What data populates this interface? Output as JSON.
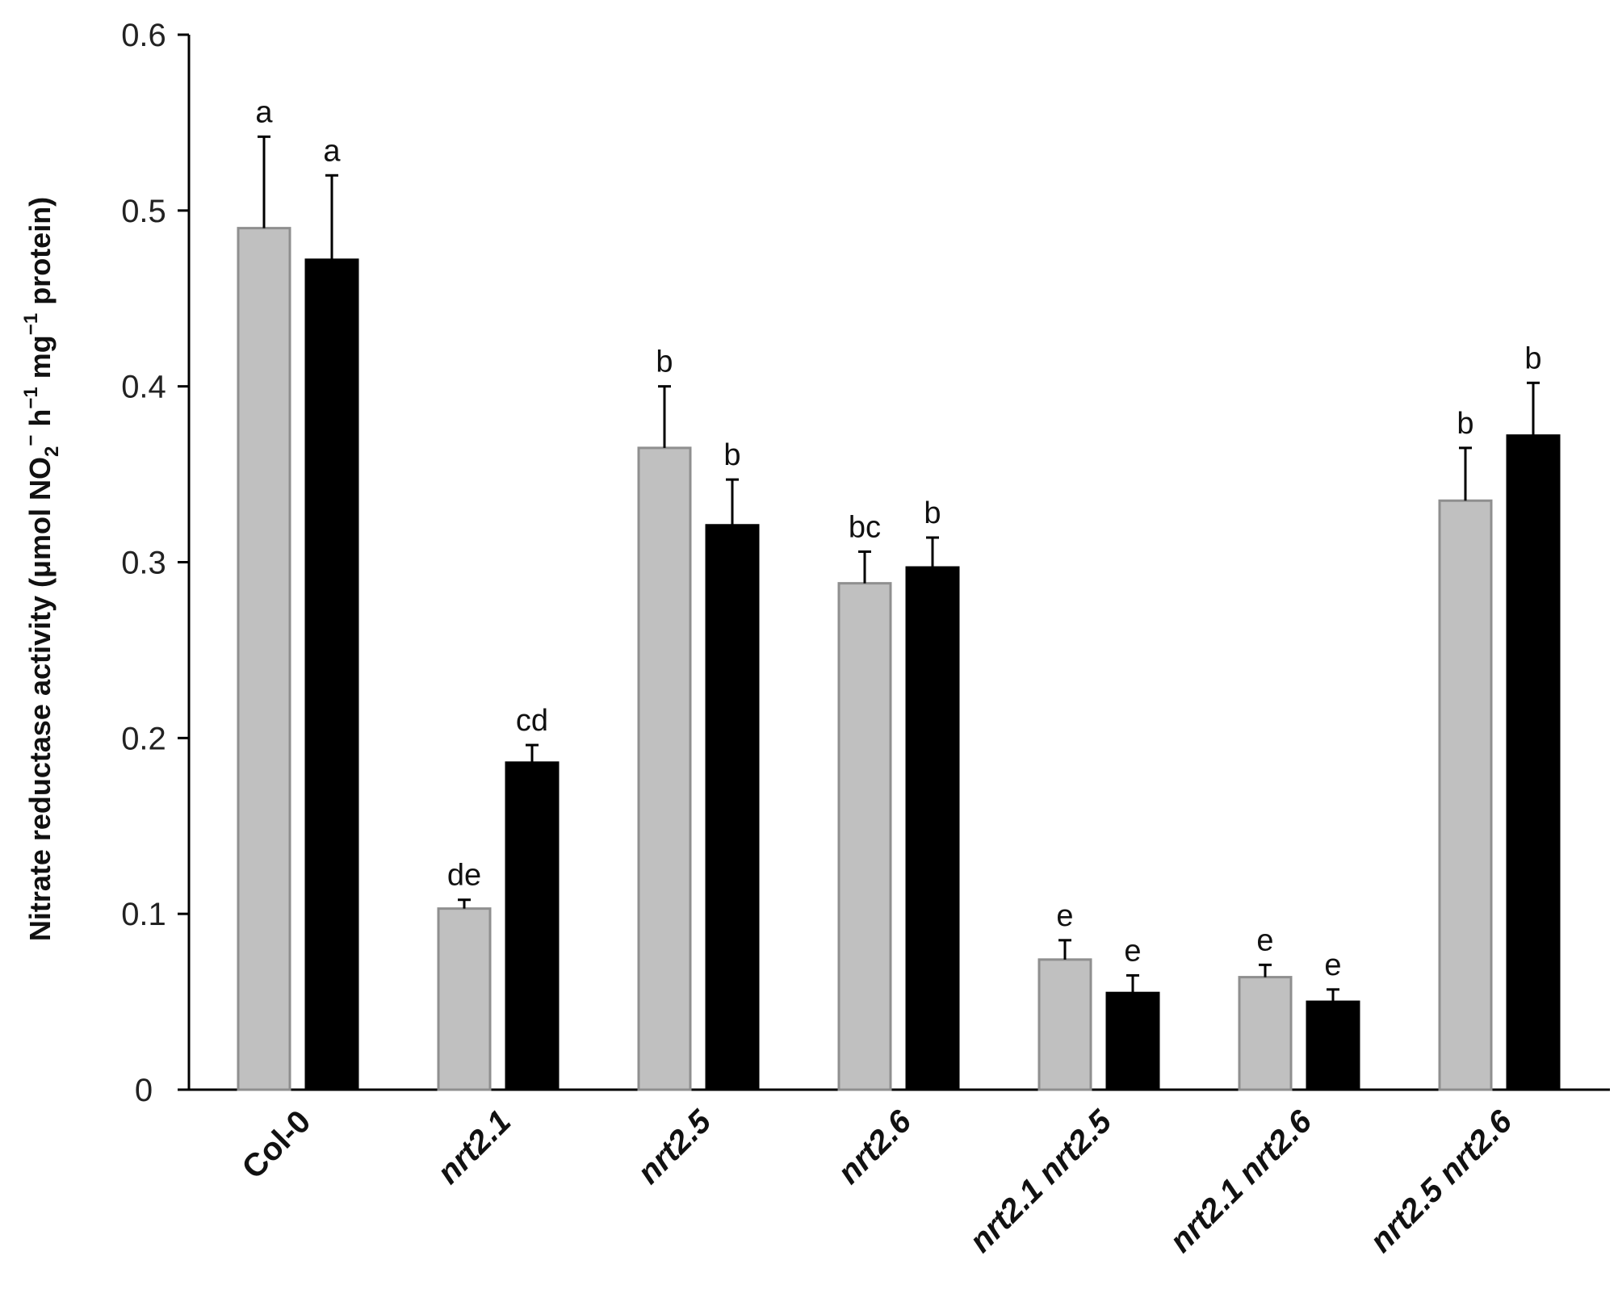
{
  "chart_data": {
    "type": "bar",
    "xlabel": "",
    "ylabel": "",
    "ylabel_parts": {
      "text_a": "Nitrate reductase activity (μmol NO",
      "sub_2": "2",
      "sup_minus": "−",
      "text_b": " h",
      "sup_neg1": "−1",
      "text_c": " mg",
      "sup_neg1_b": "−1",
      "text_d": " protein)"
    },
    "ylim": [
      0,
      0.6
    ],
    "yticks": [
      {
        "value": 0,
        "label": "0"
      },
      {
        "value": 0.1,
        "label": "0.1"
      },
      {
        "value": 0.2,
        "label": "0.2"
      },
      {
        "value": 0.3,
        "label": "0.3"
      },
      {
        "value": 0.4,
        "label": "0.4"
      },
      {
        "value": 0.5,
        "label": "0.5"
      },
      {
        "value": 0.6,
        "label": "0.6"
      }
    ],
    "grid": false,
    "legend": "none",
    "categories": [
      "Col-0",
      "nrt2.1",
      "nrt2.5",
      "nrt2.6",
      "nrt2.1 nrt2.5",
      "nrt2.1 nrt2.6",
      "nrt2.5 nrt2.6"
    ],
    "category_italic": [
      false,
      true,
      true,
      true,
      true,
      true,
      true
    ],
    "series": [
      {
        "color": "#c0c0c0",
        "stroke": "#8f8f8f",
        "values": [
          0.49,
          0.103,
          0.365,
          0.288,
          0.074,
          0.064,
          0.335
        ],
        "errors": [
          0.052,
          0.005,
          0.035,
          0.018,
          0.011,
          0.007,
          0.03
        ],
        "letters": [
          "a",
          "de",
          "b",
          "bc",
          "e",
          "e",
          "b"
        ]
      },
      {
        "color": "#000000",
        "stroke": "#000000",
        "values": [
          0.472,
          0.186,
          0.321,
          0.297,
          0.055,
          0.05,
          0.372
        ],
        "errors": [
          0.048,
          0.01,
          0.026,
          0.017,
          0.01,
          0.007,
          0.03
        ],
        "letters": [
          "a",
          "cd",
          "b",
          "b",
          "e",
          "e",
          "b"
        ]
      }
    ]
  }
}
